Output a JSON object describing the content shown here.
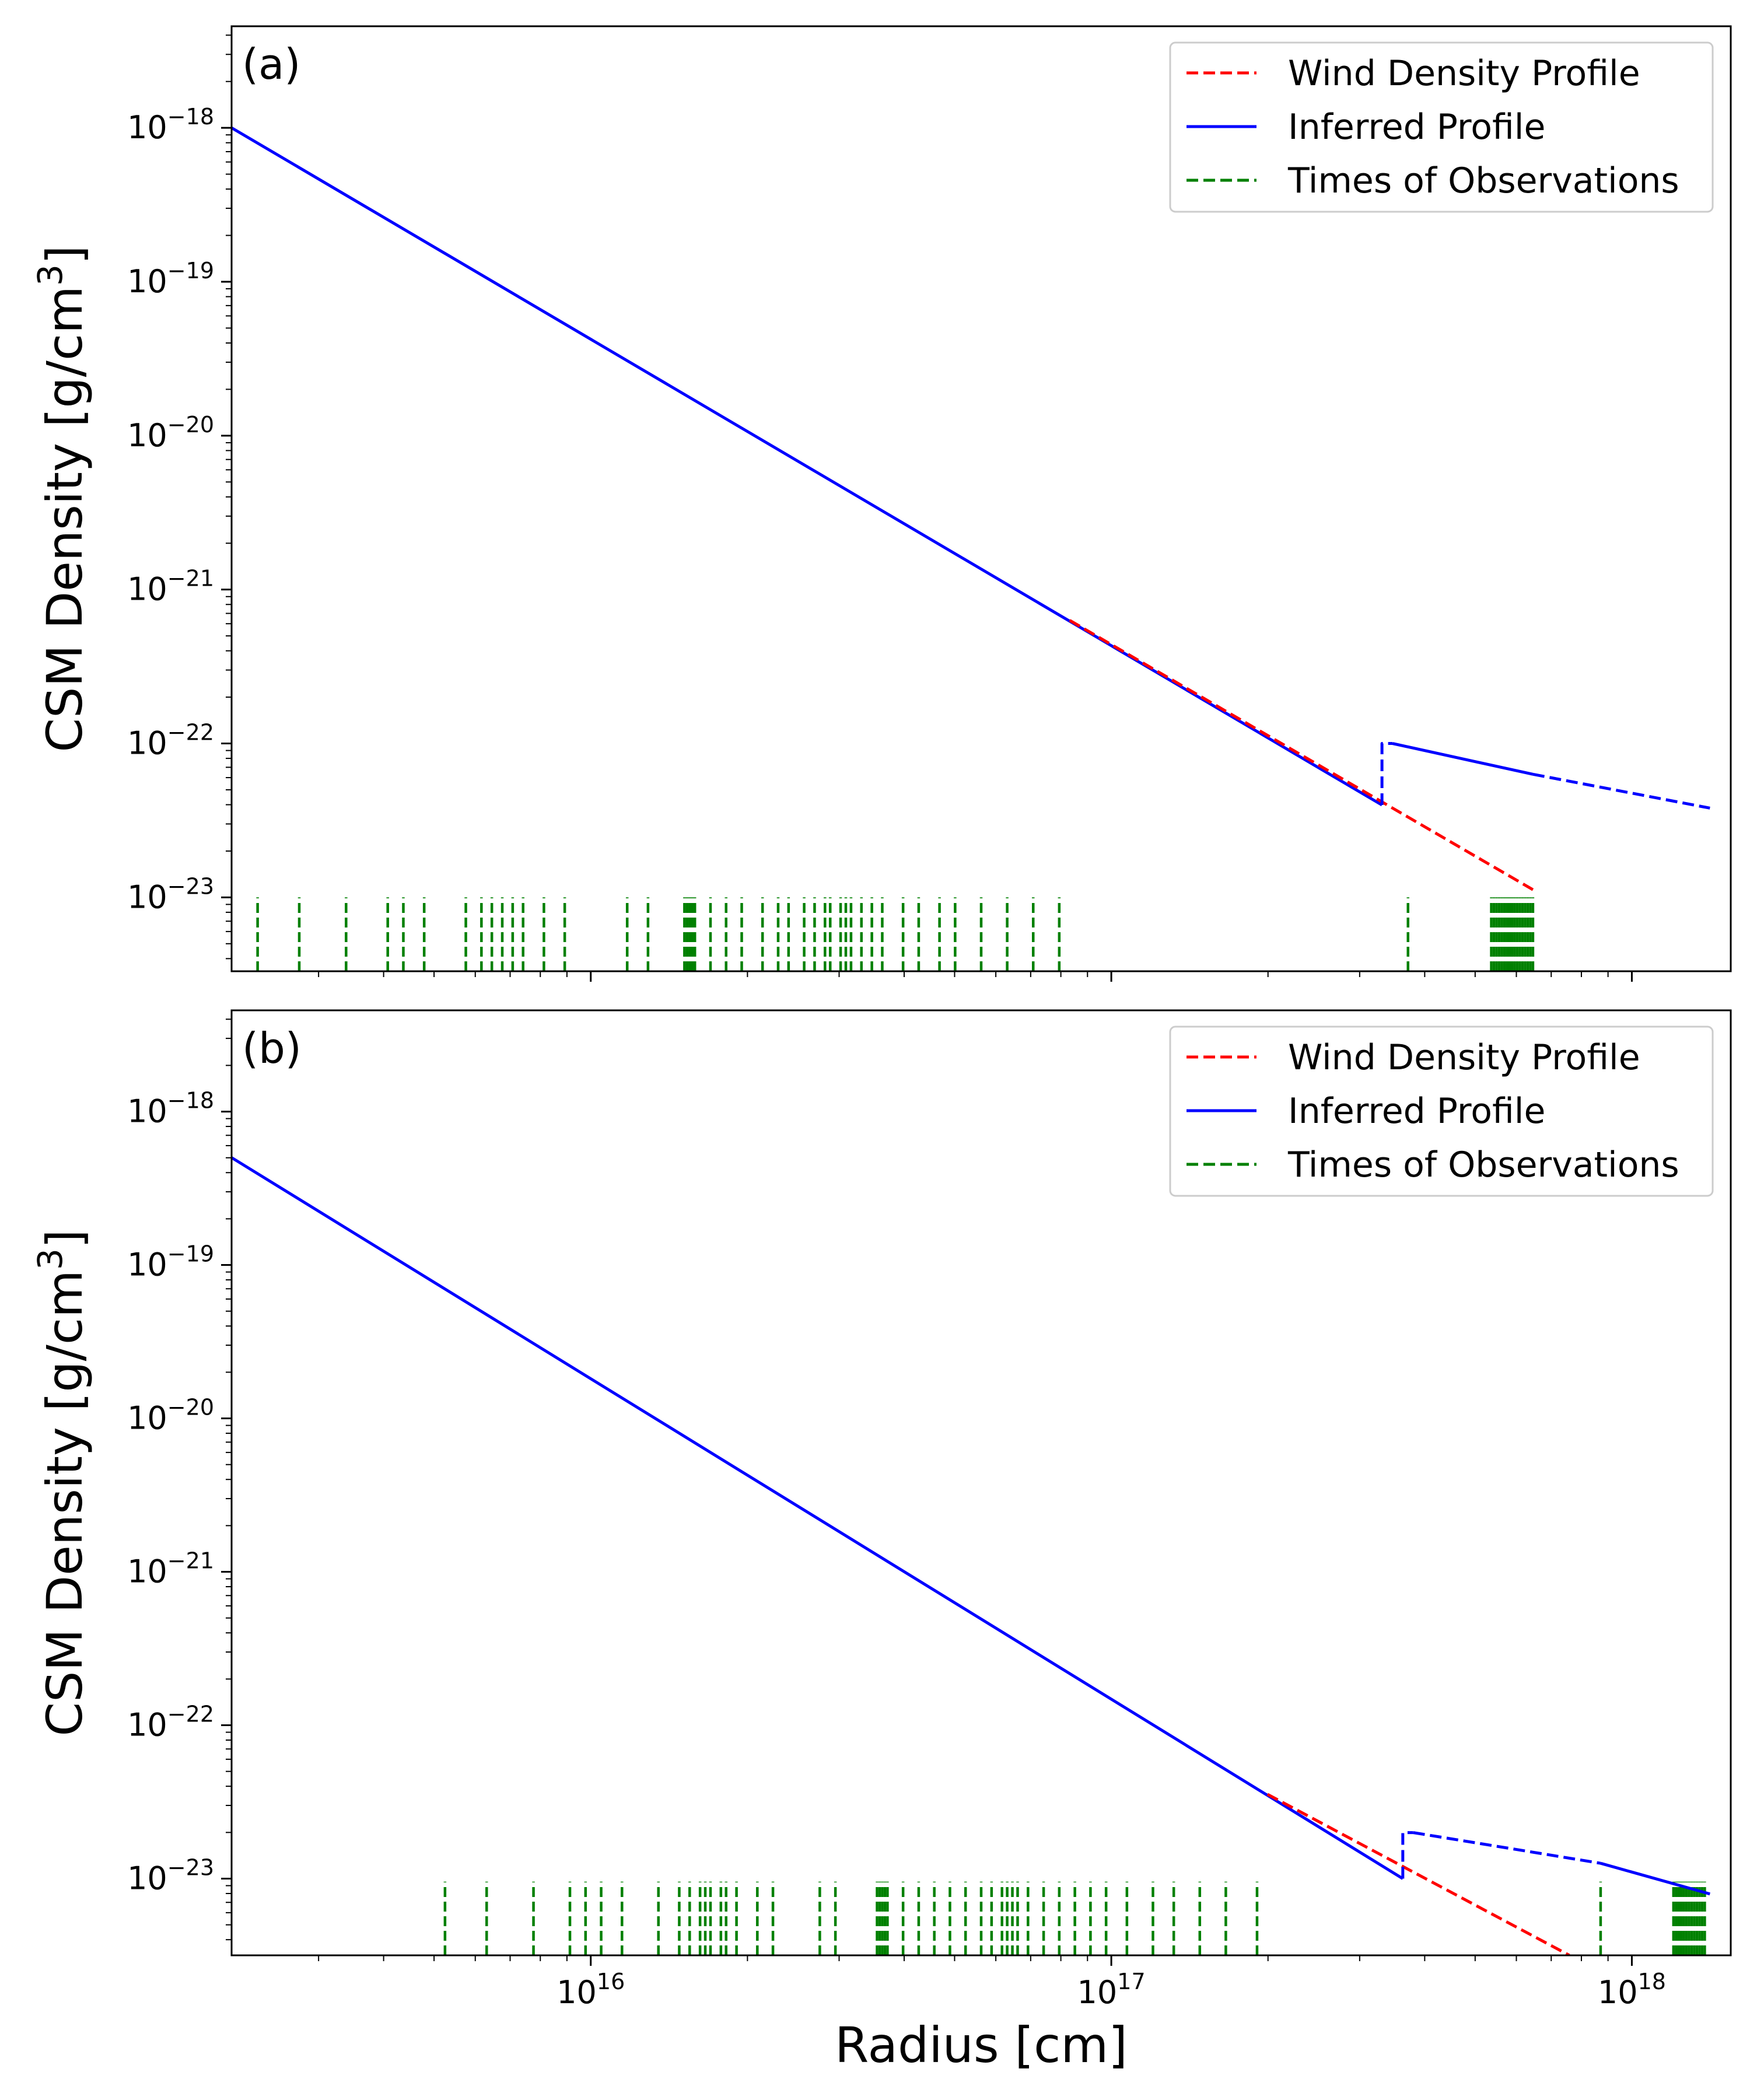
{
  "figure": {
    "xlabel": "Radius [cm]",
    "ylabel": "CSM Density [g/cm",
    "ylabel_sup": "3",
    "ylabel_close": "]"
  },
  "colors": {
    "wind": "#ff0000",
    "inferred": "#0000ff",
    "observations": "#008000"
  },
  "legend": [
    {
      "label": "Wind Density Profile",
      "style": "dashed",
      "color": "#ff0000"
    },
    {
      "label": "Inferred Profile",
      "style": "solid",
      "color": "#0000ff"
    },
    {
      "label": "Times of Observations",
      "style": "dashed",
      "color": "#008000"
    }
  ],
  "x_ticks": [
    {
      "exp": 16,
      "base": "10",
      "sup": "16"
    },
    {
      "exp": 17,
      "base": "10",
      "sup": "17"
    },
    {
      "exp": 18,
      "base": "10",
      "sup": "18"
    }
  ],
  "y_ticks": [
    {
      "exp": -18,
      "base": "10",
      "sup": "−18"
    },
    {
      "exp": -19,
      "base": "10",
      "sup": "−19"
    },
    {
      "exp": -20,
      "base": "10",
      "sup": "−20"
    },
    {
      "exp": -21,
      "base": "10",
      "sup": "−21"
    },
    {
      "exp": -22,
      "base": "10",
      "sup": "−22"
    },
    {
      "exp": -23,
      "base": "10",
      "sup": "−23"
    }
  ],
  "chart_data": [
    {
      "type": "line",
      "panel_label": "(a)",
      "xscale": "log",
      "yscale": "log",
      "xlim_log10": [
        15.31,
        18.19
      ],
      "ylim_log10": [
        -23.48,
        -17.34
      ],
      "legend_position": "upper right",
      "series": [
        {
          "name": "Inferred Profile",
          "style": "solid",
          "log_x": [
            15.31,
            17.52
          ],
          "log_y": [
            -18.0,
            -22.4
          ]
        },
        {
          "name": "Wind Density Profile",
          "style": "dashed",
          "log_x": [
            16.92,
            17.81
          ],
          "log_y": [
            -21.2,
            -22.95
          ]
        },
        {
          "name": "Inferred Profile (step)",
          "style": "dashed",
          "log_x": [
            17.52,
            17.52,
            17.54
          ],
          "log_y": [
            -22.4,
            -22.0,
            -22.0
          ]
        },
        {
          "name": "Inferred Profile (outer)",
          "style": "solid",
          "log_x": [
            17.54,
            17.81
          ],
          "log_y": [
            -22.0,
            -22.2
          ]
        },
        {
          "name": "Inferred Profile (outer extrap.)",
          "style": "dashed",
          "log_x": [
            17.81,
            18.15
          ],
          "log_y": [
            -22.2,
            -22.42
          ]
        }
      ],
      "observation_log_radii": [
        15.36,
        15.44,
        15.53,
        15.61,
        15.64,
        15.68,
        15.76,
        15.79,
        15.81,
        15.83,
        15.85,
        15.87,
        15.91,
        15.95,
        16.07,
        16.11,
        16.18,
        16.185,
        16.19,
        16.195,
        16.2,
        16.23,
        16.26,
        16.29,
        16.33,
        16.36,
        16.38,
        16.41,
        16.43,
        16.45,
        16.46,
        16.48,
        16.49,
        16.5,
        16.52,
        16.54,
        16.56,
        16.6,
        16.63,
        16.67,
        16.7,
        16.75,
        16.8,
        16.85,
        16.9,
        17.57,
        17.73,
        17.735,
        17.74,
        17.745,
        17.75,
        17.755,
        17.76,
        17.765,
        17.77,
        17.775,
        17.78,
        17.785,
        17.79,
        17.795,
        17.8,
        17.805,
        17.81
      ]
    },
    {
      "type": "line",
      "panel_label": "(b)",
      "xscale": "log",
      "yscale": "log",
      "xlim_log10": [
        15.31,
        18.19
      ],
      "ylim_log10": [
        -23.5,
        -17.34
      ],
      "legend_position": "upper right",
      "series": [
        {
          "name": "Inferred Profile",
          "style": "solid",
          "log_x": [
            15.31,
            17.56
          ],
          "log_y": [
            -18.3,
            -23.0
          ]
        },
        {
          "name": "Wind Density Profile",
          "style": "dashed",
          "log_x": [
            17.3,
            17.88
          ],
          "log_y": [
            -22.45,
            -23.5
          ]
        },
        {
          "name": "Inferred Profile (step)",
          "style": "dashed",
          "log_x": [
            17.56,
            17.56,
            17.58
          ],
          "log_y": [
            -23.0,
            -22.7,
            -22.7
          ]
        },
        {
          "name": "Inferred Profile (outer dashed)",
          "style": "dashed",
          "log_x": [
            17.58,
            17.94
          ],
          "log_y": [
            -22.7,
            -22.9
          ]
        },
        {
          "name": "Inferred Profile (outer)",
          "style": "solid",
          "log_x": [
            17.94,
            18.15
          ],
          "log_y": [
            -22.9,
            -23.1
          ]
        }
      ],
      "observation_log_radii": [
        15.72,
        15.8,
        15.89,
        15.96,
        15.99,
        16.02,
        16.06,
        16.13,
        16.17,
        16.19,
        16.21,
        16.22,
        16.23,
        16.25,
        16.26,
        16.28,
        16.32,
        16.35,
        16.44,
        16.47,
        16.55,
        16.555,
        16.56,
        16.565,
        16.57,
        16.6,
        16.63,
        16.66,
        16.69,
        16.72,
        16.75,
        16.77,
        16.79,
        16.8,
        16.81,
        16.82,
        16.84,
        16.87,
        16.9,
        16.93,
        16.96,
        16.99,
        17.03,
        17.08,
        17.12,
        17.17,
        17.22,
        17.28,
        17.94,
        18.08,
        18.085,
        18.09,
        18.095,
        18.1,
        18.105,
        18.11,
        18.115,
        18.12,
        18.125,
        18.13,
        18.135,
        18.14
      ]
    }
  ]
}
